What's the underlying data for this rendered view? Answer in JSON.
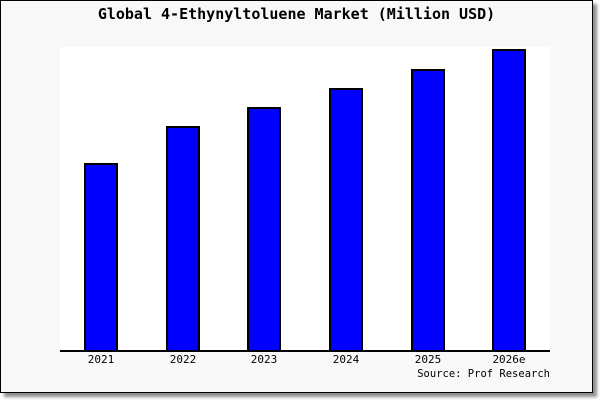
{
  "chart_data": {
    "type": "bar",
    "title": "Global 4-Ethynyltoluene Market (Million USD)",
    "categories": [
      "2021",
      "2022",
      "2023",
      "2024",
      "2025",
      "2026e"
    ],
    "values": [
      100,
      120,
      130,
      140,
      150,
      161
    ],
    "xlabel": "",
    "ylabel": "",
    "ylim": [
      0,
      162
    ],
    "grid": false,
    "legend": null,
    "y_axis_visible": false,
    "bar_color": "#0000ff",
    "bar_border_color": "#000000",
    "plot_background": "#ffffff",
    "page_background": "#f8f8f8",
    "axis_color": "#000000"
  },
  "footer": {
    "source": "Source: Prof Research"
  }
}
